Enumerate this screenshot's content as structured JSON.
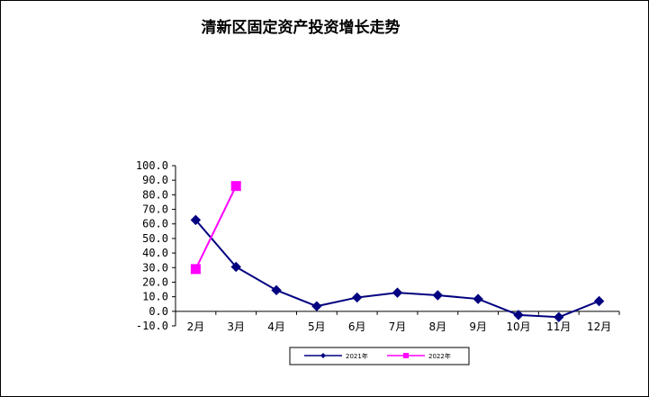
{
  "chart_data": {
    "type": "line",
    "title": "清新区固定资产投资增长走势",
    "xlabel": "",
    "ylabel": "",
    "categories": [
      "2月",
      "3月",
      "4月",
      "5月",
      "6月",
      "7月",
      "8月",
      "9月",
      "10月",
      "11月",
      "12月"
    ],
    "ylim": [
      -10,
      100
    ],
    "yticks": [
      "100.0",
      "90.0",
      "80.0",
      "70.0",
      "60.0",
      "50.0",
      "40.0",
      "30.0",
      "20.0",
      "10.0",
      "0.0",
      "-10.0"
    ],
    "grid": false,
    "legend_position": "bottom",
    "series": [
      {
        "name": "2021年",
        "color": "#000080",
        "marker": "diamond",
        "values": [
          62.7,
          30.5,
          14.5,
          3.5,
          9.5,
          12.8,
          11.0,
          8.5,
          -2.5,
          -4.0,
          7.0
        ]
      },
      {
        "name": "2022年",
        "color": "#ff00ff",
        "marker": "square",
        "values": [
          29.0,
          86.0,
          null,
          null,
          null,
          null,
          null,
          null,
          null,
          null,
          null
        ]
      }
    ]
  }
}
